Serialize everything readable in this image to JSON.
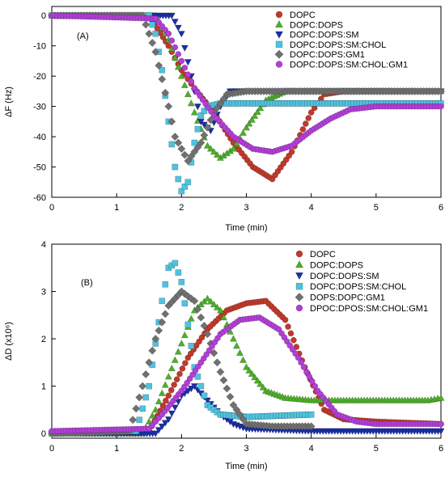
{
  "chart_data": [
    {
      "type": "scatter",
      "panel_label": "(A)",
      "xlabel": "Time (min)",
      "ylabel": "ΔF (Hz)",
      "xlim": [
        0,
        6
      ],
      "ylim": [
        -60,
        3
      ],
      "xticks": [
        0,
        1,
        2,
        3,
        4,
        5,
        6
      ],
      "yticks": [
        0,
        -10,
        -20,
        -30,
        -40,
        -50,
        -60
      ],
      "legend_position": "top-right",
      "series": [
        {
          "name": "DOPC",
          "marker": "circle",
          "color": "#c0392b",
          "x": [
            0,
            1.5,
            1.8,
            2.0,
            2.2,
            2.5,
            2.8,
            3.1,
            3.4,
            3.7,
            4.0,
            4.2,
            4.5,
            5.0,
            6.0
          ],
          "y": [
            0,
            0,
            -10,
            -18,
            -24,
            -32,
            -42,
            -50,
            -54,
            -45,
            -32,
            -26,
            -25,
            -25,
            -25
          ]
        },
        {
          "name": "DOPC:DOPS",
          "marker": "triangle-up",
          "color": "#4caf28",
          "x": [
            0,
            1.6,
            1.8,
            2.0,
            2.2,
            2.4,
            2.6,
            2.8,
            3.0,
            3.3,
            3.6,
            4.0,
            6.0
          ],
          "y": [
            0,
            0,
            -8,
            -20,
            -32,
            -43,
            -47,
            -44,
            -37,
            -28,
            -25,
            -25,
            -25
          ]
        },
        {
          "name": "DOPC:DOPS:SM",
          "marker": "triangle-down",
          "color": "#1a2fa8",
          "x": [
            0,
            1.85,
            2.0,
            2.15,
            2.3,
            2.45,
            2.6,
            2.75,
            3.0,
            6.0
          ],
          "y": [
            0,
            0,
            -6,
            -20,
            -35,
            -38,
            -30,
            -25,
            -25,
            -25
          ]
        },
        {
          "name": "DOPC:DOPS:SM:CHOL",
          "marker": "square",
          "color": "#4ec3e0",
          "x": [
            0,
            1.5,
            1.6,
            1.7,
            1.8,
            1.9,
            2.0,
            2.1,
            2.2,
            2.3,
            2.4,
            2.6,
            6.0
          ],
          "y": [
            0,
            0,
            -6,
            -18,
            -35,
            -50,
            -58,
            -55,
            -42,
            -33,
            -30,
            -29,
            -29
          ]
        },
        {
          "name": "DOPC:DOPS:GM1",
          "marker": "diamond",
          "color": "#707070",
          "x": [
            0,
            1.4,
            1.6,
            1.8,
            1.9,
            2.1,
            2.3,
            2.5,
            2.7,
            3.0,
            6.0
          ],
          "y": [
            0,
            0,
            -12,
            -30,
            -40,
            -48,
            -42,
            -32,
            -26,
            -25,
            -25
          ]
        },
        {
          "name": "DOPC:DOPS:SM:CHOL:GM1",
          "marker": "circle",
          "color": "#b23fd6",
          "x": [
            0,
            1.6,
            1.8,
            2.0,
            2.2,
            2.5,
            2.8,
            3.1,
            3.4,
            3.7,
            4.0,
            4.3,
            4.6,
            5.0,
            5.5,
            6.0
          ],
          "y": [
            0,
            -1,
            -6,
            -15,
            -24,
            -33,
            -40,
            -44,
            -45,
            -43,
            -38,
            -34,
            -31,
            -30,
            -30,
            -30
          ]
        }
      ]
    },
    {
      "type": "scatter",
      "panel_label": "(B)",
      "xlabel": "Time (min)",
      "ylabel": "ΔD (x10⁶)",
      "xlim": [
        0,
        6
      ],
      "ylim": [
        -0.1,
        4
      ],
      "xticks": [
        0,
        1,
        2,
        3,
        4,
        5,
        6
      ],
      "yticks": [
        0,
        1,
        2,
        3,
        4
      ],
      "legend_position": "top-right",
      "series": [
        {
          "name": "DOPC",
          "marker": "circle",
          "color": "#c0392b",
          "x": [
            0,
            1.5,
            1.8,
            2.1,
            2.4,
            2.7,
            3.0,
            3.3,
            3.6,
            3.9,
            4.2,
            4.5,
            5.0,
            6.0
          ],
          "y": [
            0,
            0.05,
            0.8,
            1.6,
            2.2,
            2.6,
            2.75,
            2.8,
            2.4,
            1.4,
            0.5,
            0.3,
            0.25,
            0.2
          ]
        },
        {
          "name": "DOPC:DOPS",
          "marker": "triangle-up",
          "color": "#4caf28",
          "x": [
            0,
            1.4,
            1.6,
            1.8,
            2.0,
            2.2,
            2.4,
            2.6,
            2.8,
            3.0,
            3.3,
            3.6,
            4.0,
            5.0,
            5.8,
            6.0
          ],
          "y": [
            0,
            0,
            0.5,
            1.2,
            1.9,
            2.6,
            2.85,
            2.6,
            2.0,
            1.4,
            0.9,
            0.75,
            0.7,
            0.7,
            0.7,
            0.75
          ]
        },
        {
          "name": "DOPC:DOPS:SM",
          "marker": "triangle-down",
          "color": "#1a2fa8",
          "x": [
            0,
            1.6,
            1.8,
            2.0,
            2.2,
            2.4,
            2.6,
            2.8,
            3.0,
            4.0,
            6.0
          ],
          "y": [
            0,
            0,
            0.3,
            0.8,
            1.0,
            0.7,
            0.4,
            0.2,
            0.1,
            0.05,
            0.05
          ]
        },
        {
          "name": "DOPC:DOPS:SM:CHOL",
          "marker": "square",
          "color": "#4ec3e0",
          "x": [
            0,
            1.3,
            1.5,
            1.6,
            1.7,
            1.8,
            1.9,
            2.0,
            2.1,
            2.2,
            2.4,
            2.6,
            3.0,
            4.0
          ],
          "y": [
            0,
            0.05,
            1.0,
            1.9,
            2.8,
            3.5,
            3.6,
            3.2,
            2.3,
            1.4,
            0.6,
            0.4,
            0.35,
            0.4
          ]
        },
        {
          "name": "DOPS:DOPC:GM1",
          "marker": "diamond",
          "color": "#707070",
          "x": [
            0,
            1.2,
            1.4,
            1.6,
            1.8,
            2.0,
            2.2,
            2.4,
            2.6,
            2.8,
            3.0,
            3.4,
            4.0
          ],
          "y": [
            0,
            0.05,
            1.0,
            2.0,
            2.7,
            3.0,
            2.8,
            2.1,
            1.3,
            0.6,
            0.2,
            0.15,
            0.15
          ]
        },
        {
          "name": "DPOC:DPOS:SM:CHOL:GM1",
          "marker": "circle",
          "color": "#b23fd6",
          "x": [
            0,
            1.5,
            1.7,
            2.0,
            2.3,
            2.6,
            2.9,
            3.2,
            3.5,
            3.8,
            4.1,
            4.4,
            4.7,
            5.0,
            6.0
          ],
          "y": [
            0.05,
            0.1,
            0.4,
            0.9,
            1.5,
            2.1,
            2.4,
            2.45,
            2.2,
            1.6,
            0.9,
            0.4,
            0.25,
            0.2,
            0.2
          ]
        }
      ]
    }
  ]
}
